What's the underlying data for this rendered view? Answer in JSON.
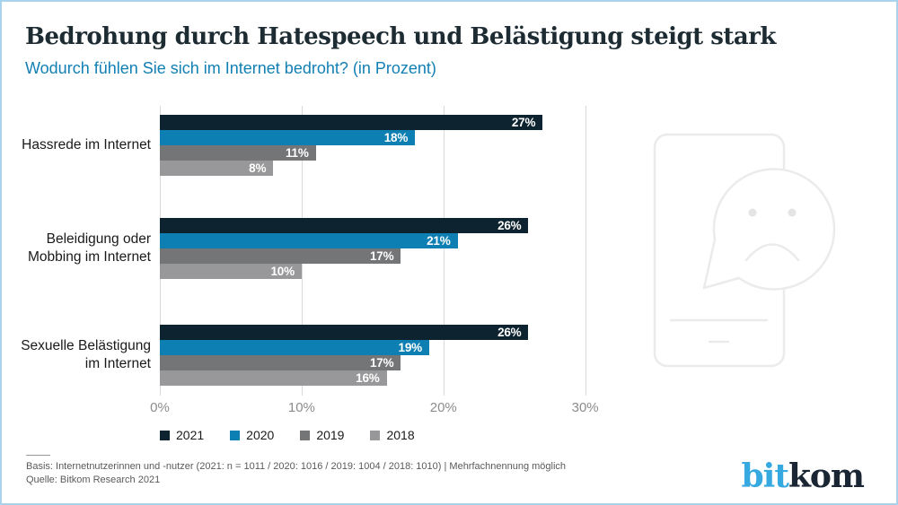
{
  "header": {
    "title": "Bedrohung durch Hatespeech und Belästigung steigt stark",
    "subtitle": "Wodurch fühlen Sie sich im Internet bedroht? (in Prozent)"
  },
  "chart_data": {
    "type": "bar",
    "orientation": "horizontal",
    "unit": "%",
    "categories": [
      "Hassrede im Internet",
      "Beleidigung oder Mobbing im Internet",
      "Sexuelle Belästigung im Internet"
    ],
    "category_label_lines": [
      [
        "Hassrede im Internet"
      ],
      [
        "Beleidigung oder",
        "Mobbing im Internet"
      ],
      [
        "Sexuelle Belästigung",
        "im Internet"
      ]
    ],
    "series": [
      {
        "name": "2021",
        "color": "#0d2330",
        "values": [
          27,
          26,
          26
        ]
      },
      {
        "name": "2020",
        "color": "#0e7fb2",
        "values": [
          18,
          21,
          19
        ]
      },
      {
        "name": "2019",
        "color": "#747577",
        "values": [
          11,
          17,
          17
        ]
      },
      {
        "name": "2018",
        "color": "#98989a",
        "values": [
          8,
          10,
          16
        ]
      }
    ],
    "x_axis": {
      "ticks": [
        0,
        10,
        20,
        30
      ],
      "tick_labels": [
        "0%",
        "10%",
        "20%",
        "30%"
      ],
      "max": 33
    },
    "grid": true,
    "legend_position": "bottom",
    "value_label_color": "#ffffff"
  },
  "footer": {
    "basis": "Basis: Internetnutzerinnen und -nutzer (2021: n = 1011 / 2020: 1016 / 2019: 1004 / 2018: 1010) | Mehrfachnennung möglich",
    "source": "Quelle: Bitkom Research 2021"
  },
  "logo": {
    "part1": "bit",
    "part2": "kom",
    "color1": "#36a9e1",
    "color2": "#1a2633"
  },
  "illustration": {
    "name": "smartphone-sad-face-speech-bubble",
    "color": "#ebebeb",
    "eye_color": "#e4e4e4"
  },
  "colors": {
    "border": "#a9d3ec",
    "gridline": "#d9d9d9",
    "tick_label": "#8c8c8c"
  }
}
